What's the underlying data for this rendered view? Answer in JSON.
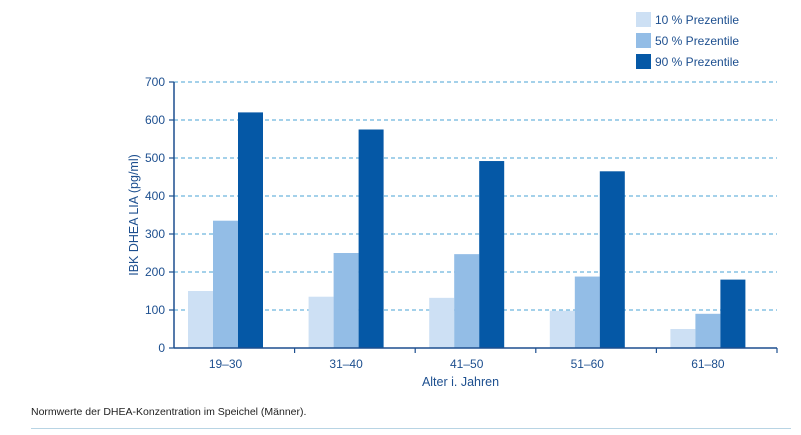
{
  "chart_data": {
    "type": "bar",
    "categories": [
      "19–30",
      "31–40",
      "41–50",
      "51–60",
      "61–80"
    ],
    "series": [
      {
        "name": "10 % Prezentile",
        "color": "#cde0f4",
        "values": [
          150,
          135,
          132,
          98,
          50
        ]
      },
      {
        "name": "50 % Prezentile",
        "color": "#93bde6",
        "values": [
          335,
          250,
          247,
          188,
          90
        ]
      },
      {
        "name": "90 % Prezentile",
        "color": "#0558a6",
        "values": [
          620,
          575,
          492,
          465,
          180
        ]
      }
    ],
    "xlabel": "Alter i. Jahren",
    "ylabel": "IBK DHEA LIA (pg/ml)",
    "ylim": [
      0,
      700
    ],
    "yticks": [
      0,
      100,
      200,
      300,
      400,
      500,
      600,
      700
    ],
    "grid": true,
    "legend_position": "top-right",
    "colors": {
      "axis": "#1d4f8f",
      "grid": "#4aa3d6",
      "text": "#1d4f8f"
    }
  },
  "caption": "Normwerte der DHEA-Konzentration im Speichel (Männer)."
}
